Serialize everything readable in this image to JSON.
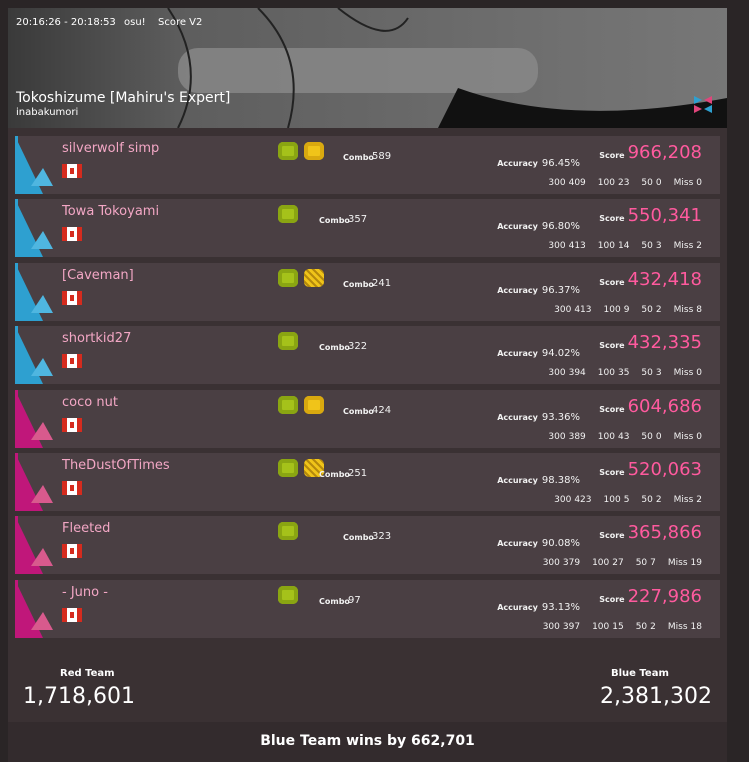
{
  "header": {
    "time": "20:16:26 - 20:18:53",
    "mode": "osu!",
    "scoring": "Score V2",
    "title": "Tokoshizume [Mahiru's Expert]",
    "artist": "inabakumori"
  },
  "labels": {
    "combo": "Combo",
    "accuracy": "Accuracy",
    "score": "Score",
    "c300": "300",
    "c100": "100",
    "c50": "50",
    "miss": "Miss"
  },
  "players": [
    {
      "name": "silverwolf simp",
      "combo": 589,
      "accuracy": "96.45%",
      "score": "966,208",
      "c300": 409,
      "c100": 23,
      "c50": 0,
      "miss": 0
    },
    {
      "name": "Towa Tokoyami",
      "combo": 357,
      "accuracy": "96.80%",
      "score": "550,341",
      "c300": 413,
      "c100": 14,
      "c50": 3,
      "miss": 2
    },
    {
      "name": "[Caveman]",
      "combo": 241,
      "accuracy": "96.37%",
      "score": "432,418",
      "c300": 413,
      "c100": 9,
      "c50": 2,
      "miss": 8
    },
    {
      "name": "shortkid27",
      "combo": 322,
      "accuracy": "94.02%",
      "score": "432,335",
      "c300": 394,
      "c100": 35,
      "c50": 3,
      "miss": 0
    },
    {
      "name": "coco nut",
      "combo": 424,
      "accuracy": "93.36%",
      "score": "604,686",
      "c300": 389,
      "c100": 43,
      "c50": 0,
      "miss": 0
    },
    {
      "name": "TheDustOfTimes",
      "combo": 251,
      "accuracy": "98.38%",
      "score": "520,063",
      "c300": 423,
      "c100": 5,
      "c50": 2,
      "miss": 2
    },
    {
      "name": "Fleeted",
      "combo": 323,
      "accuracy": "90.08%",
      "score": "365,866",
      "c300": 379,
      "c100": 27,
      "c50": 7,
      "miss": 19
    },
    {
      "name": "- Juno -",
      "combo": 97,
      "accuracy": "93.13%",
      "score": "227,986",
      "c300": 397,
      "c100": 15,
      "c50": 2,
      "miss": 18
    }
  ],
  "totals": {
    "red_label": "Red Team",
    "red_score": "1,718,601",
    "blue_label": "Blue Team",
    "blue_score": "2,381,302"
  },
  "result": "Blue Team wins by 662,701"
}
